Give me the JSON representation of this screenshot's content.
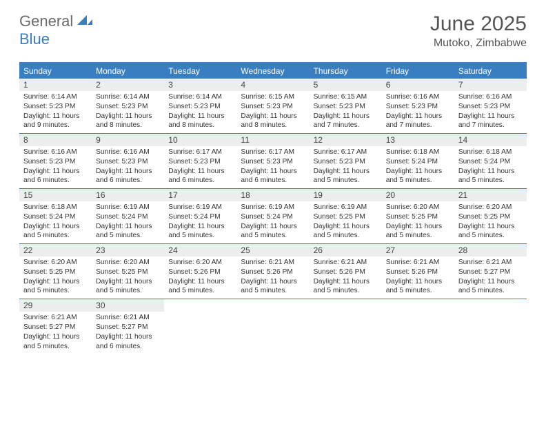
{
  "brand": {
    "text1": "General",
    "text2": "Blue"
  },
  "title": "June 2025",
  "location": "Mutoko, Zimbabwe",
  "colors": {
    "accent": "#3a7ec2",
    "headerText": "#555555",
    "logoGray": "#6b6b6b",
    "dayHeaderBg": "#eceded",
    "bodyText": "#333333"
  },
  "weekdays": [
    "Sunday",
    "Monday",
    "Tuesday",
    "Wednesday",
    "Thursday",
    "Friday",
    "Saturday"
  ],
  "weeks": [
    [
      {
        "n": "1",
        "sr": "6:14 AM",
        "ss": "5:23 PM",
        "dl": "11 hours and 9 minutes."
      },
      {
        "n": "2",
        "sr": "6:14 AM",
        "ss": "5:23 PM",
        "dl": "11 hours and 8 minutes."
      },
      {
        "n": "3",
        "sr": "6:14 AM",
        "ss": "5:23 PM",
        "dl": "11 hours and 8 minutes."
      },
      {
        "n": "4",
        "sr": "6:15 AM",
        "ss": "5:23 PM",
        "dl": "11 hours and 8 minutes."
      },
      {
        "n": "5",
        "sr": "6:15 AM",
        "ss": "5:23 PM",
        "dl": "11 hours and 7 minutes."
      },
      {
        "n": "6",
        "sr": "6:16 AM",
        "ss": "5:23 PM",
        "dl": "11 hours and 7 minutes."
      },
      {
        "n": "7",
        "sr": "6:16 AM",
        "ss": "5:23 PM",
        "dl": "11 hours and 7 minutes."
      }
    ],
    [
      {
        "n": "8",
        "sr": "6:16 AM",
        "ss": "5:23 PM",
        "dl": "11 hours and 6 minutes."
      },
      {
        "n": "9",
        "sr": "6:16 AM",
        "ss": "5:23 PM",
        "dl": "11 hours and 6 minutes."
      },
      {
        "n": "10",
        "sr": "6:17 AM",
        "ss": "5:23 PM",
        "dl": "11 hours and 6 minutes."
      },
      {
        "n": "11",
        "sr": "6:17 AM",
        "ss": "5:23 PM",
        "dl": "11 hours and 6 minutes."
      },
      {
        "n": "12",
        "sr": "6:17 AM",
        "ss": "5:23 PM",
        "dl": "11 hours and 5 minutes."
      },
      {
        "n": "13",
        "sr": "6:18 AM",
        "ss": "5:24 PM",
        "dl": "11 hours and 5 minutes."
      },
      {
        "n": "14",
        "sr": "6:18 AM",
        "ss": "5:24 PM",
        "dl": "11 hours and 5 minutes."
      }
    ],
    [
      {
        "n": "15",
        "sr": "6:18 AM",
        "ss": "5:24 PM",
        "dl": "11 hours and 5 minutes."
      },
      {
        "n": "16",
        "sr": "6:19 AM",
        "ss": "5:24 PM",
        "dl": "11 hours and 5 minutes."
      },
      {
        "n": "17",
        "sr": "6:19 AM",
        "ss": "5:24 PM",
        "dl": "11 hours and 5 minutes."
      },
      {
        "n": "18",
        "sr": "6:19 AM",
        "ss": "5:24 PM",
        "dl": "11 hours and 5 minutes."
      },
      {
        "n": "19",
        "sr": "6:19 AM",
        "ss": "5:25 PM",
        "dl": "11 hours and 5 minutes."
      },
      {
        "n": "20",
        "sr": "6:20 AM",
        "ss": "5:25 PM",
        "dl": "11 hours and 5 minutes."
      },
      {
        "n": "21",
        "sr": "6:20 AM",
        "ss": "5:25 PM",
        "dl": "11 hours and 5 minutes."
      }
    ],
    [
      {
        "n": "22",
        "sr": "6:20 AM",
        "ss": "5:25 PM",
        "dl": "11 hours and 5 minutes."
      },
      {
        "n": "23",
        "sr": "6:20 AM",
        "ss": "5:25 PM",
        "dl": "11 hours and 5 minutes."
      },
      {
        "n": "24",
        "sr": "6:20 AM",
        "ss": "5:26 PM",
        "dl": "11 hours and 5 minutes."
      },
      {
        "n": "25",
        "sr": "6:21 AM",
        "ss": "5:26 PM",
        "dl": "11 hours and 5 minutes."
      },
      {
        "n": "26",
        "sr": "6:21 AM",
        "ss": "5:26 PM",
        "dl": "11 hours and 5 minutes."
      },
      {
        "n": "27",
        "sr": "6:21 AM",
        "ss": "5:26 PM",
        "dl": "11 hours and 5 minutes."
      },
      {
        "n": "28",
        "sr": "6:21 AM",
        "ss": "5:27 PM",
        "dl": "11 hours and 5 minutes."
      }
    ],
    [
      {
        "n": "29",
        "sr": "6:21 AM",
        "ss": "5:27 PM",
        "dl": "11 hours and 5 minutes."
      },
      {
        "n": "30",
        "sr": "6:21 AM",
        "ss": "5:27 PM",
        "dl": "11 hours and 6 minutes."
      },
      null,
      null,
      null,
      null,
      null
    ]
  ],
  "labels": {
    "sunrise": "Sunrise:",
    "sunset": "Sunset:",
    "daylight": "Daylight:"
  }
}
